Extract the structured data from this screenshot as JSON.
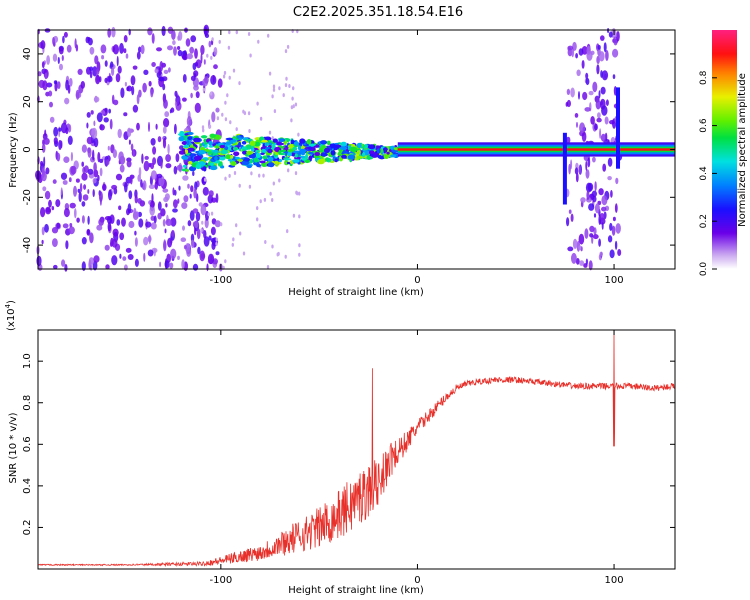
{
  "title": "C2E2.2025.351.18.54.E16",
  "chart_data": [
    {
      "type": "heatmap",
      "id": "spectrogram",
      "xlabel": "Height of straight line (km)",
      "ylabel": "Frequency (Hz)",
      "xlim": [
        -193,
        131
      ],
      "ylim": [
        -50,
        50
      ],
      "xticks": [
        -100,
        0,
        100
      ],
      "xtick_labels": [
        "-100",
        "0",
        "100"
      ],
      "yticks": [
        -40,
        -20,
        0,
        20,
        40
      ],
      "ytick_labels": [
        "-40",
        "-20",
        "0",
        "20",
        "40"
      ],
      "colorbar": {
        "label": "Normalized spectral amplitude",
        "range": [
          0.0,
          1.0
        ],
        "ticks": [
          0.0,
          0.2,
          0.4,
          0.6,
          0.8
        ],
        "tick_labels": [
          "0.0",
          "0.2",
          "0.4",
          "0.6",
          "0.8"
        ]
      },
      "features": [
        {
          "name": "noise-region",
          "x_range": [
            -193,
            -100
          ],
          "freq_range": [
            -50,
            50
          ],
          "amplitude": 0.15
        },
        {
          "name": "broadening-band",
          "x_range": [
            -120,
            -10
          ],
          "freq_range": [
            -8,
            8
          ],
          "amplitude": 0.5
        },
        {
          "name": "narrow-tone",
          "x_range": [
            -10,
            131
          ],
          "freq": 0,
          "amplitude": 0.9
        },
        {
          "name": "noise-gap",
          "x_range": [
            76,
            103
          ],
          "freq_range": [
            -50,
            50
          ],
          "amplitude": 0.15
        }
      ]
    },
    {
      "type": "line",
      "id": "snr",
      "xlabel": "Height of straight line (km)",
      "ylabel": "SNR (10 * v/v)",
      "y_scale_label": "(x10",
      "y_scale_exp": "4",
      "xlim": [
        -193,
        131
      ],
      "ylim": [
        0.0,
        1.15
      ],
      "xticks": [
        -100,
        0,
        100
      ],
      "xtick_labels": [
        "-100",
        "0",
        "100"
      ],
      "yticks": [
        0.2,
        0.4,
        0.6,
        0.8,
        1.0
      ],
      "ytick_labels": [
        "0.2",
        "0.4",
        "0.6",
        "0.8",
        "1.0"
      ],
      "color": "#e8302a",
      "series": [
        {
          "name": "SNR",
          "x": [
            -193,
            -150,
            -110,
            -100,
            -90,
            -80,
            -70,
            -60,
            -50,
            -40,
            -30,
            -20,
            -15,
            -10,
            -5,
            0,
            5,
            10,
            15,
            20,
            25,
            30,
            40,
            50,
            60,
            70,
            80,
            90,
            100,
            110,
            120,
            131
          ],
          "y": [
            0.02,
            0.02,
            0.025,
            0.04,
            0.06,
            0.08,
            0.12,
            0.16,
            0.2,
            0.26,
            0.34,
            0.42,
            0.5,
            0.56,
            0.62,
            0.68,
            0.73,
            0.78,
            0.83,
            0.87,
            0.89,
            0.9,
            0.91,
            0.91,
            0.9,
            0.89,
            0.88,
            0.88,
            0.88,
            0.88,
            0.87,
            0.88
          ],
          "noise": [
            0.003,
            0.003,
            0.01,
            0.02,
            0.03,
            0.04,
            0.06,
            0.08,
            0.1,
            0.12,
            0.14,
            0.12,
            0.1,
            0.07,
            0.05,
            0.04,
            0.03,
            0.03,
            0.02,
            0.02,
            0.015,
            0.015,
            0.015,
            0.015,
            0.015,
            0.015,
            0.015,
            0.015,
            0.015,
            0.015,
            0.015,
            0.015
          ]
        }
      ],
      "annotations": [
        {
          "x": -18,
          "y": 1.0,
          "label": "peak"
        },
        {
          "x": 100,
          "y": 1.15,
          "label": "spike-up"
        },
        {
          "x": 100,
          "y": 0.59,
          "label": "spike-down"
        }
      ]
    }
  ]
}
